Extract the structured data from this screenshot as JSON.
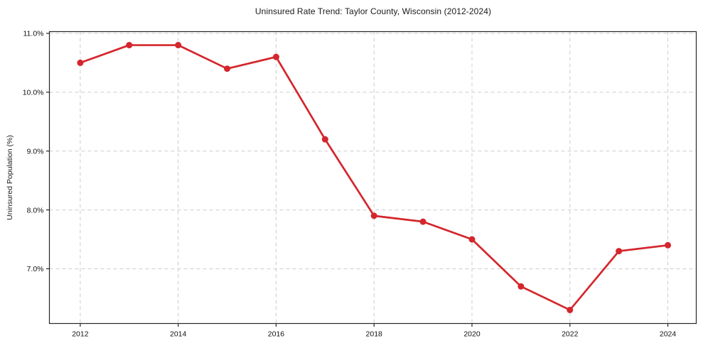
{
  "chart_data": {
    "type": "line",
    "title": "Uninsured Rate Trend: Taylor County, Wisconsin (2012-2024)",
    "xlabel": "",
    "ylabel": "Uninsured Population (%)",
    "x": [
      2012,
      2013,
      2014,
      2015,
      2016,
      2017,
      2018,
      2019,
      2020,
      2021,
      2022,
      2023,
      2024
    ],
    "values": [
      10.5,
      10.8,
      10.8,
      10.4,
      10.6,
      9.2,
      7.9,
      7.8,
      7.5,
      6.7,
      6.3,
      7.3,
      7.4
    ],
    "xticks": [
      2012,
      2014,
      2016,
      2018,
      2020,
      2022,
      2024
    ],
    "xtick_labels": [
      "2012",
      "2014",
      "2016",
      "2018",
      "2020",
      "2022",
      "2024"
    ],
    "yticks": [
      7,
      8,
      9,
      10,
      11
    ],
    "ytick_labels": [
      "7.0%",
      "8.0%",
      "9.0%",
      "10.0%",
      "11.0%"
    ],
    "xlim": [
      2011.37,
      2024.58
    ],
    "ylim": [
      6.07,
      11.03
    ],
    "grid": true,
    "legend_position": "none",
    "line_color": "#d4262c",
    "marker_color": "#d4262c",
    "grid_color": "#cccccc",
    "axis_color": "#262626",
    "text_color": "#111111",
    "background_color": "#ffffff"
  }
}
